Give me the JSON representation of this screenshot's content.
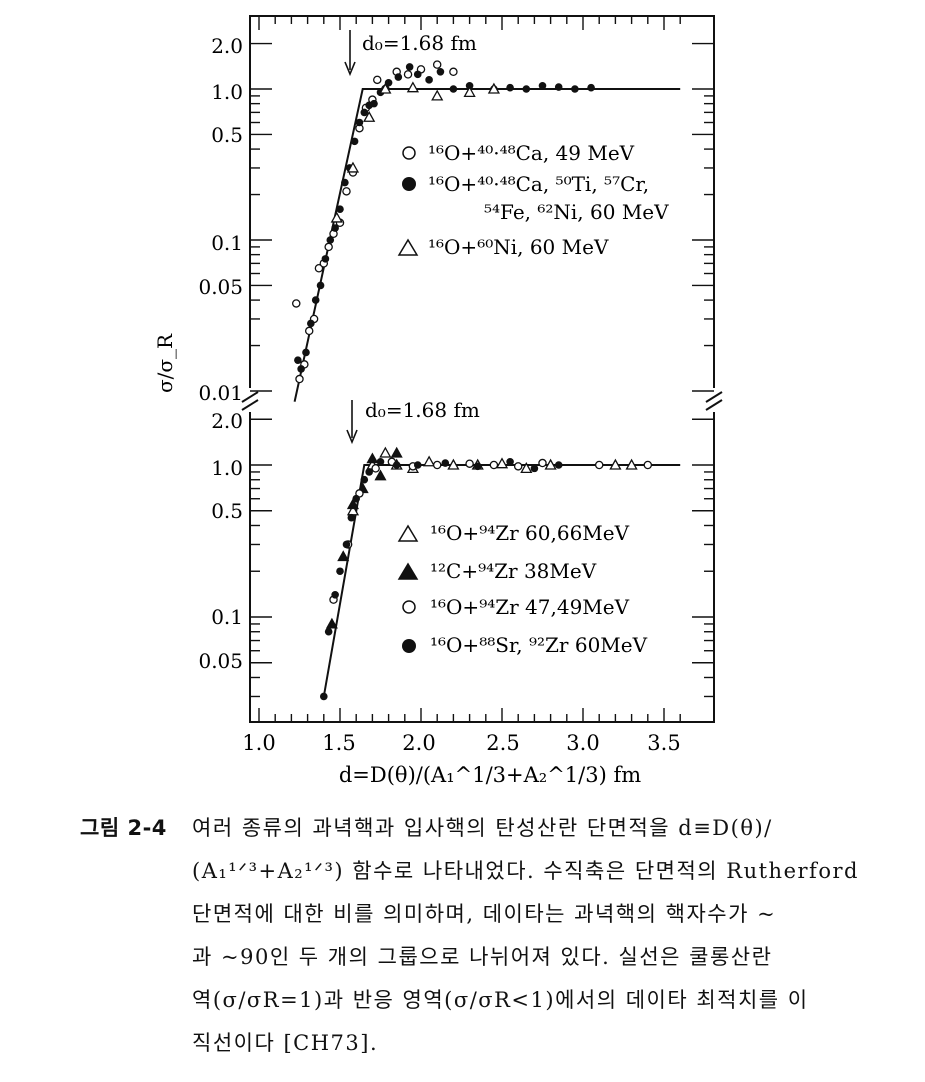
{
  "figure": {
    "ylabel": "σ/σ_R",
    "xlabel": "d=D(θ)/(A₁^1/3+A₂^1/3)  fm",
    "x_ticks": [
      "1.0",
      "1.5",
      "2.0",
      "2.5",
      "3.0",
      "3.5"
    ],
    "top_panel": {
      "y_ticks": [
        "2.0",
        "1.0",
        "0.5",
        "0.1",
        "0.05",
        "0.01"
      ],
      "annotation": "d₀=1.68  fm",
      "legend": [
        {
          "marker": "open-circle",
          "text": "¹⁶O+⁴⁰·⁴⁸Ca, 49 MeV"
        },
        {
          "marker": "filled-circle",
          "text": "¹⁶O+⁴⁰·⁴⁸Ca, ⁵⁰Ti, ⁵⁷Cr,"
        },
        {
          "marker": "none",
          "text": "⁵⁴Fe, ⁶²Ni, 60 MeV"
        },
        {
          "marker": "open-triangle",
          "text": "¹⁶O+⁶⁰Ni, 60 MeV"
        }
      ]
    },
    "bottom_panel": {
      "y_ticks": [
        "2.0",
        "1.0",
        "0.5",
        "0.1",
        "0.05"
      ],
      "annotation": "d₀=1.68  fm",
      "legend": [
        {
          "marker": "open-triangle",
          "text": "¹⁶O+⁹⁴Zr  60,66MeV"
        },
        {
          "marker": "filled-triangle",
          "text": "¹²C+⁹⁴Zr  38MeV"
        },
        {
          "marker": "open-circle",
          "text": "¹⁶O+⁹⁴Zr  47,49MeV"
        },
        {
          "marker": "filled-circle",
          "text": "¹⁶O+⁸⁸Sr, ⁹²Zr  60MeV"
        }
      ]
    }
  },
  "chart_data": [
    {
      "type": "scatter",
      "title": "",
      "xlabel": "d=D(θ)/(A₁^1/3+A₂^1/3)  fm",
      "ylabel": "σ/σ_R",
      "xlim": [
        1.0,
        3.7
      ],
      "ylim": [
        0.0085,
        2.6
      ],
      "yscale": "log",
      "d0": 1.68,
      "fit_line": {
        "x": [
          1.22,
          1.64,
          3.6
        ],
        "y": [
          0.0085,
          1.0,
          1.0
        ]
      },
      "series": [
        {
          "name": "¹⁶O+⁴⁰·⁴⁸Ca, 49 MeV",
          "marker": "open-circle",
          "x": [
            1.23,
            1.25,
            1.28,
            1.31,
            1.34,
            1.37,
            1.4,
            1.43,
            1.46,
            1.5,
            1.54,
            1.58,
            1.62,
            1.66,
            1.7,
            1.73,
            1.78,
            1.85,
            1.92,
            2.0,
            2.1,
            2.2
          ],
          "y": [
            0.038,
            0.012,
            0.015,
            0.025,
            0.03,
            0.065,
            0.07,
            0.09,
            0.11,
            0.13,
            0.21,
            0.28,
            0.55,
            0.75,
            0.85,
            1.15,
            1.0,
            1.3,
            1.25,
            1.35,
            1.45,
            1.3
          ]
        },
        {
          "name": "¹⁶O+⁴⁰·⁴⁸Ca, ⁵⁰Ti, ⁵⁷Cr, ⁵⁴Fe, ⁶²Ni, 60 MeV",
          "marker": "filled-circle",
          "x": [
            1.24,
            1.26,
            1.29,
            1.32,
            1.35,
            1.38,
            1.41,
            1.44,
            1.47,
            1.5,
            1.53,
            1.56,
            1.59,
            1.62,
            1.65,
            1.68,
            1.71,
            1.75,
            1.8,
            1.86,
            1.93,
            1.98,
            2.05,
            2.12,
            2.2,
            2.3,
            2.45,
            2.55,
            2.65,
            2.75,
            2.85,
            2.95,
            3.05
          ],
          "y": [
            0.016,
            0.014,
            0.018,
            0.028,
            0.04,
            0.05,
            0.075,
            0.1,
            0.12,
            0.16,
            0.24,
            0.3,
            0.45,
            0.6,
            0.7,
            0.78,
            0.8,
            0.95,
            1.1,
            1.2,
            1.4,
            1.25,
            1.15,
            1.3,
            1.0,
            1.05,
            1.0,
            1.02,
            1.0,
            1.05,
            1.03,
            1.0,
            1.02
          ]
        },
        {
          "name": "¹⁶O+⁶⁰Ni, 60 MeV",
          "marker": "open-triangle",
          "x": [
            1.48,
            1.58,
            1.68,
            1.78,
            1.95,
            2.1,
            2.3,
            2.45
          ],
          "y": [
            0.14,
            0.3,
            0.65,
            1.0,
            1.02,
            0.9,
            0.95,
            1.0
          ]
        }
      ]
    },
    {
      "type": "scatter",
      "title": "",
      "xlabel": "d=D(θ)/(A₁^1/3+A₂^1/3)  fm",
      "ylabel": "σ/σ_R",
      "xlim": [
        1.0,
        3.7
      ],
      "ylim": [
        0.025,
        2.6
      ],
      "yscale": "log",
      "d0": 1.68,
      "fit_line": {
        "x": [
          1.4,
          1.65,
          3.6
        ],
        "y": [
          0.03,
          1.0,
          1.0
        ]
      },
      "series": [
        {
          "name": "¹⁶O+⁹⁴Zr  60,66MeV",
          "marker": "open-triangle",
          "x": [
            1.58,
            1.7,
            1.78,
            1.85,
            1.95,
            2.05,
            2.2,
            2.35,
            2.5,
            2.65,
            2.8,
            3.2,
            3.3
          ],
          "y": [
            0.5,
            1.0,
            1.2,
            1.0,
            0.95,
            1.05,
            1.0,
            1.0,
            1.02,
            0.95,
            1.0,
            1.0,
            1.0
          ]
        },
        {
          "name": "¹²C+⁹⁴Zr  38MeV",
          "marker": "filled-triangle",
          "x": [
            1.45,
            1.52,
            1.58,
            1.64,
            1.7,
            1.75,
            1.85
          ],
          "y": [
            0.09,
            0.25,
            0.55,
            0.7,
            1.1,
            0.85,
            1.2
          ]
        },
        {
          "name": "¹⁶O+⁹⁴Zr  47,49MeV",
          "marker": "open-circle",
          "x": [
            1.46,
            1.55,
            1.62,
            1.72,
            1.82,
            1.95,
            2.1,
            2.3,
            2.45,
            2.6,
            2.75,
            3.1,
            3.4
          ],
          "y": [
            0.13,
            0.3,
            0.65,
            0.95,
            1.05,
            0.98,
            1.0,
            1.02,
            1.0,
            0.98,
            1.03,
            1.0,
            1.0
          ]
        },
        {
          "name": "¹⁶O+⁸⁸Sr, ⁹²Zr  60MeV",
          "marker": "filled-circle",
          "x": [
            1.4,
            1.43,
            1.47,
            1.5,
            1.54,
            1.57,
            1.6,
            1.65,
            1.68,
            1.75,
            1.85,
            1.98,
            2.15,
            2.35,
            2.55,
            2.7,
            2.85
          ],
          "y": [
            0.03,
            0.08,
            0.14,
            0.2,
            0.3,
            0.45,
            0.6,
            0.8,
            0.9,
            1.05,
            1.0,
            1.0,
            1.03,
            0.98,
            1.05,
            0.95,
            1.0
          ]
        }
      ]
    }
  ],
  "caption": {
    "label": "그림 2-4",
    "lines": [
      "여러 종류의 과녁핵과 입사핵의 탄성산란 단면적을 d≡D(θ)/",
      "(A₁¹ᐟ³+A₂¹ᐟ³) 함수로 나타내었다. 수직축은 단면적의 Rutherford",
      "단면적에 대한 비를 의미하며, 데이타는 과녁핵의 핵자수가 ~",
      "과 ~90인 두 개의 그룹으로 나뉘어져 있다. 실선은 쿨롱산란",
      "역(σ/σR=1)과 반응 영역(σ/σR<1)에서의 데이타 최적치를 이",
      "직선이다 [CH73]."
    ]
  }
}
